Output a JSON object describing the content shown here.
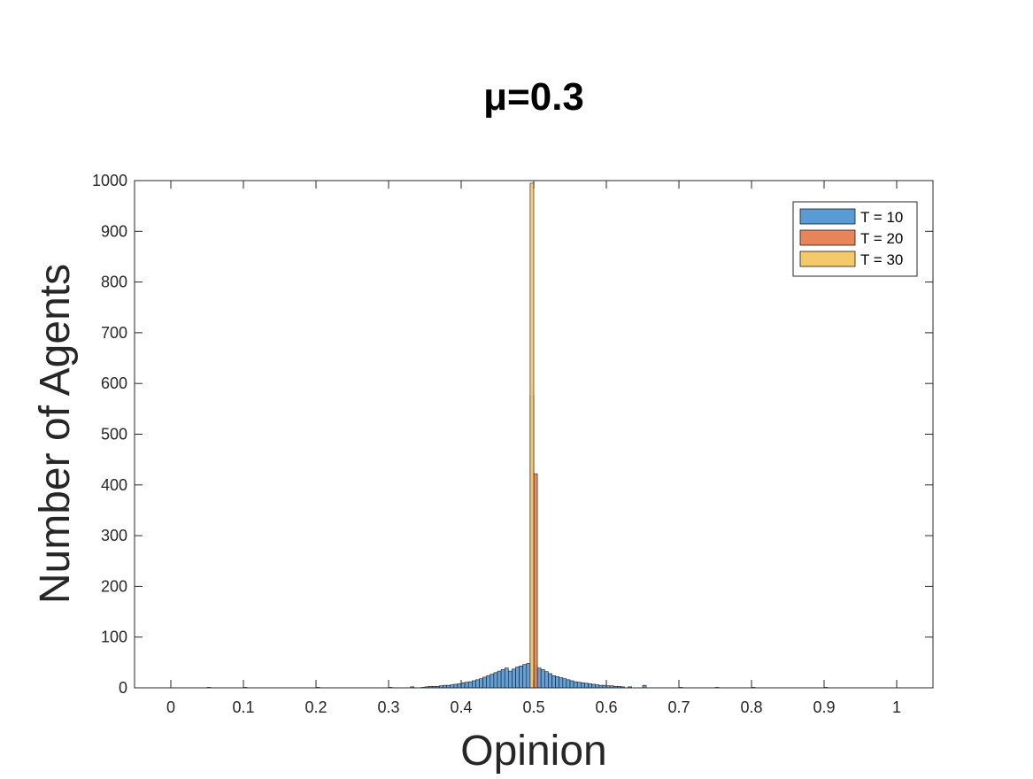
{
  "chart_data": {
    "type": "bar",
    "title": "μ=0.3",
    "xlabel": "Opinion",
    "ylabel": "Number of Agents",
    "xlim": [
      -0.05,
      1.05
    ],
    "ylim": [
      0,
      1000
    ],
    "xticks": [
      0,
      0.1,
      0.2,
      0.3,
      0.4,
      0.5,
      0.6,
      0.7,
      0.8,
      0.9,
      1
    ],
    "xtick_labels": [
      "0",
      "0.1",
      "0.2",
      "0.3",
      "0.4",
      "0.5",
      "0.6",
      "0.7",
      "0.8",
      "0.9",
      "1"
    ],
    "yticks": [
      0,
      100,
      200,
      300,
      400,
      500,
      600,
      700,
      800,
      900,
      1000
    ],
    "ytick_labels": [
      "0",
      "100",
      "200",
      "300",
      "400",
      "500",
      "600",
      "700",
      "800",
      "900",
      "1000"
    ],
    "grid": false,
    "legend_position": "top-right",
    "bin_width": 0.005,
    "series": [
      {
        "name": "T = 10",
        "color": "#5b9bd5",
        "bins": [
          [
            0.05,
            1
          ],
          [
            0.1,
            1
          ],
          [
            0.2,
            1
          ],
          [
            0.3,
            1
          ],
          [
            0.33,
            2
          ],
          [
            0.345,
            1
          ],
          [
            0.35,
            2
          ],
          [
            0.355,
            3
          ],
          [
            0.36,
            3
          ],
          [
            0.365,
            3
          ],
          [
            0.37,
            4
          ],
          [
            0.375,
            5
          ],
          [
            0.38,
            5
          ],
          [
            0.385,
            6
          ],
          [
            0.39,
            7
          ],
          [
            0.395,
            8
          ],
          [
            0.4,
            10
          ],
          [
            0.405,
            11
          ],
          [
            0.41,
            12
          ],
          [
            0.415,
            14
          ],
          [
            0.42,
            16
          ],
          [
            0.425,
            18
          ],
          [
            0.43,
            21
          ],
          [
            0.435,
            24
          ],
          [
            0.44,
            27
          ],
          [
            0.445,
            30
          ],
          [
            0.45,
            33
          ],
          [
            0.455,
            36
          ],
          [
            0.46,
            39
          ],
          [
            0.465,
            33
          ],
          [
            0.47,
            37
          ],
          [
            0.475,
            41
          ],
          [
            0.48,
            43
          ],
          [
            0.485,
            46
          ],
          [
            0.49,
            48
          ],
          [
            0.5,
            45
          ],
          [
            0.505,
            39
          ],
          [
            0.51,
            36
          ],
          [
            0.515,
            32
          ],
          [
            0.52,
            28
          ],
          [
            0.525,
            24
          ],
          [
            0.53,
            22
          ],
          [
            0.535,
            20
          ],
          [
            0.54,
            18
          ],
          [
            0.545,
            16
          ],
          [
            0.55,
            14
          ],
          [
            0.555,
            12
          ],
          [
            0.56,
            11
          ],
          [
            0.565,
            10
          ],
          [
            0.57,
            9
          ],
          [
            0.575,
            8
          ],
          [
            0.58,
            7
          ],
          [
            0.585,
            6
          ],
          [
            0.59,
            5
          ],
          [
            0.595,
            5
          ],
          [
            0.6,
            4
          ],
          [
            0.605,
            4
          ],
          [
            0.61,
            3
          ],
          [
            0.615,
            3
          ],
          [
            0.62,
            2
          ],
          [
            0.63,
            2
          ],
          [
            0.65,
            5
          ],
          [
            0.7,
            1
          ],
          [
            0.75,
            1
          ],
          [
            0.8,
            1
          ],
          [
            0.9,
            1
          ]
        ]
      },
      {
        "name": "T = 20",
        "color": "#e8845a",
        "bins": [
          [
            0.495,
            575
          ],
          [
            0.5,
            422
          ]
        ]
      },
      {
        "name": "T = 30",
        "color": "#f3c96a",
        "bins": [
          [
            0.495,
            995
          ]
        ]
      }
    ]
  }
}
